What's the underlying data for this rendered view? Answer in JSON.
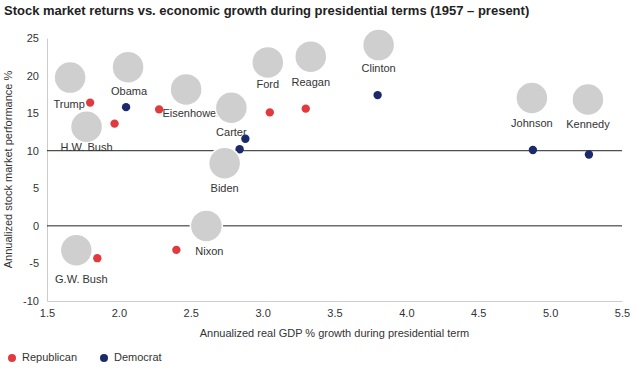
{
  "chart_data": {
    "type": "scatter",
    "title": "Stock market returns vs. economic growth during presidential terms (1957 – present)",
    "x_label": "Annualized real GDP % growth during presidential term",
    "y_label": "Annualized stock market performance %",
    "xlim": [
      1.5,
      5.5
    ],
    "xticks": [
      1.5,
      {
        "value": 2,
        "label": "2.0"
      },
      2.5,
      {
        "value": 3,
        "label": "3.0"
      },
      3.5,
      {
        "value": 4,
        "label": "4.0"
      },
      4.5,
      {
        "value": 5,
        "label": "5.0"
      },
      5.5
    ],
    "ylim": [
      -10,
      25
    ],
    "yticks": [
      -10,
      -5,
      0,
      5,
      10,
      15,
      20,
      25
    ],
    "hlines": [
      0,
      10
    ],
    "grid": false,
    "legend": "bottom-left",
    "series": [
      {
        "name": "Republican",
        "color": "#e03a3e",
        "marker": "circle",
        "labels": [
          "Trump",
          "H.W. Bush",
          "Eisenhower",
          "G.W. Bush",
          "Nixon",
          "Ford",
          "Reagan"
        ],
        "x": [
          1.8,
          1.97,
          2.28,
          1.85,
          2.4,
          3.05,
          3.3
        ],
        "values": [
          16.4,
          13.6,
          15.5,
          -4.3,
          -3.2,
          15.1,
          15.6
        ]
      },
      {
        "name": "Democrat",
        "color": "#1b2a6b",
        "marker": "circle",
        "labels": [
          "Obama",
          "Carter",
          "Biden",
          "Clinton",
          "Johnson",
          "Kennedy"
        ],
        "x": [
          2.05,
          2.88,
          2.84,
          3.8,
          4.88,
          5.27
        ],
        "values": [
          15.8,
          11.6,
          10.2,
          17.4,
          10.1,
          9.5
        ]
      }
    ]
  }
}
